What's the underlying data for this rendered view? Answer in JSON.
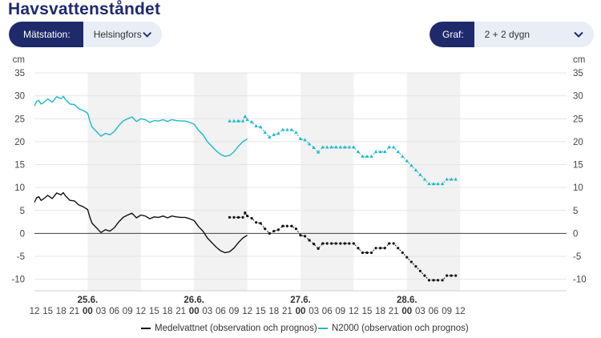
{
  "page": {
    "title": "Havsvattenståndet"
  },
  "station_selector": {
    "label": "Mätstation:",
    "value": "Helsingfors"
  },
  "graph_selector": {
    "label": "Graf:",
    "value": "2 + 2 dygn"
  },
  "colors": {
    "black_series": "#111111",
    "cyan_series": "#1fb8c8",
    "night_band": "#f2f2f2",
    "grid": "#e4e4e4",
    "zero": "#555555",
    "selector_dark": "#1f2a6b"
  },
  "chart_data": {
    "type": "line",
    "y_unit_left": "cm",
    "y_unit_right": "cm",
    "ylim": [
      -12.5,
      35
    ],
    "yticks": [
      35,
      30,
      25,
      20,
      15,
      10,
      5,
      0,
      -5,
      -10
    ],
    "xlim_hours": [
      12,
      132
    ],
    "x_tick_labels": [
      "12",
      "15",
      "18",
      "21",
      "00",
      "03",
      "06",
      "09",
      "12",
      "15",
      "18",
      "21",
      "00",
      "03",
      "06",
      "09",
      "12",
      "15",
      "18",
      "21",
      "00",
      "03",
      "06",
      "09",
      "12",
      "15",
      "18",
      "21",
      "00",
      "03",
      "06",
      "09",
      "12"
    ],
    "date_labels": [
      "25.6.",
      "26.6.",
      "27.6.",
      "28.6."
    ],
    "night_bands": [
      [
        24,
        36
      ],
      [
        48,
        60
      ],
      [
        72,
        84
      ],
      [
        96,
        108
      ]
    ],
    "grid": true,
    "legend_position": "bottom",
    "series": [
      {
        "name": "Medelvattnet (observation och prognos)",
        "color": "#111111",
        "observation": [
          [
            12,
            6.8
          ],
          [
            12.5,
            7.8
          ],
          [
            13,
            8
          ],
          [
            13.5,
            7.2
          ],
          [
            14,
            7.5
          ],
          [
            15,
            8.3
          ],
          [
            16,
            7.6
          ],
          [
            17,
            8.8
          ],
          [
            18,
            8.4
          ],
          [
            18.5,
            8.9
          ],
          [
            19,
            8.2
          ],
          [
            20,
            7.2
          ],
          [
            21,
            7.1
          ],
          [
            22,
            6.2
          ],
          [
            23,
            5.8
          ],
          [
            24,
            5.2
          ],
          [
            24.5,
            3.5
          ],
          [
            25,
            2.2
          ],
          [
            26,
            1.2
          ],
          [
            27,
            0.2
          ],
          [
            28,
            0.8
          ],
          [
            29,
            0.5
          ],
          [
            30,
            1.2
          ],
          [
            31,
            2.5
          ],
          [
            32,
            3.5
          ],
          [
            33,
            4
          ],
          [
            34,
            4.4
          ],
          [
            35,
            3.4
          ],
          [
            36,
            4
          ],
          [
            37,
            3.8
          ],
          [
            38,
            3.2
          ],
          [
            39,
            3.6
          ],
          [
            40,
            3.5
          ],
          [
            41,
            3.8
          ],
          [
            42,
            3.4
          ],
          [
            43,
            3.8
          ],
          [
            44,
            3.6
          ],
          [
            45,
            3.5
          ],
          [
            46,
            3.5
          ],
          [
            47,
            3.2
          ],
          [
            48,
            2.8
          ],
          [
            49,
            1.5
          ],
          [
            50,
            0.5
          ],
          [
            51,
            -1
          ],
          [
            52,
            -2
          ],
          [
            53,
            -3
          ],
          [
            54,
            -3.8
          ],
          [
            55,
            -4.2
          ],
          [
            56,
            -4
          ],
          [
            57,
            -3.2
          ],
          [
            58,
            -2
          ],
          [
            59,
            -1
          ],
          [
            60,
            -0.4
          ]
        ],
        "forecast": [
          [
            56,
            3.5
          ],
          [
            57,
            3.5
          ],
          [
            58,
            3.5
          ],
          [
            59,
            3.5
          ],
          [
            59.5,
            4.5
          ],
          [
            60,
            3.8
          ],
          [
            61,
            3.3
          ],
          [
            62,
            2.4
          ],
          [
            63,
            2.2
          ],
          [
            64,
            1
          ],
          [
            65,
            0
          ],
          [
            66,
            0.5
          ],
          [
            67,
            0.8
          ],
          [
            68,
            1.6
          ],
          [
            69,
            1.6
          ],
          [
            70,
            1.6
          ],
          [
            71,
            1
          ],
          [
            72,
            -0.4
          ],
          [
            73,
            -0.6
          ],
          [
            74,
            -1.5
          ],
          [
            75,
            -2.3
          ],
          [
            76,
            -3.3
          ],
          [
            77,
            -2.2
          ],
          [
            78,
            -2.2
          ],
          [
            79,
            -2.2
          ],
          [
            80,
            -2.2
          ],
          [
            81,
            -2.2
          ],
          [
            82,
            -2.2
          ],
          [
            83,
            -2.2
          ],
          [
            84,
            -2.2
          ],
          [
            85,
            -3.2
          ],
          [
            86,
            -4.2
          ],
          [
            87,
            -4.2
          ],
          [
            88,
            -4.2
          ],
          [
            89,
            -3.2
          ],
          [
            90,
            -3.2
          ],
          [
            91,
            -3.2
          ],
          [
            92,
            -2.2
          ],
          [
            93,
            -2.2
          ],
          [
            94,
            -3.2
          ],
          [
            95,
            -4.2
          ],
          [
            96,
            -5.2
          ],
          [
            97,
            -6.2
          ],
          [
            98,
            -7.2
          ],
          [
            99,
            -8.2
          ],
          [
            100,
            -9.2
          ],
          [
            101,
            -10.2
          ],
          [
            102,
            -10.2
          ],
          [
            103,
            -10.2
          ],
          [
            104,
            -10.2
          ],
          [
            105,
            -9.2
          ],
          [
            106,
            -9.2
          ],
          [
            107,
            -9.2
          ]
        ]
      },
      {
        "name": "N2000 (observation och prognos)",
        "color": "#1fb8c8",
        "observation": [
          [
            12,
            27.8
          ],
          [
            12.5,
            28.8
          ],
          [
            13,
            29
          ],
          [
            13.5,
            28.2
          ],
          [
            14,
            28.5
          ],
          [
            15,
            29.3
          ],
          [
            16,
            28.6
          ],
          [
            17,
            29.8
          ],
          [
            18,
            29.4
          ],
          [
            18.5,
            29.9
          ],
          [
            19,
            29.2
          ],
          [
            20,
            28.2
          ],
          [
            21,
            28.1
          ],
          [
            22,
            27.2
          ],
          [
            23,
            26.8
          ],
          [
            24,
            26.2
          ],
          [
            24.5,
            24.5
          ],
          [
            25,
            23.2
          ],
          [
            26,
            22.2
          ],
          [
            27,
            21.2
          ],
          [
            28,
            21.8
          ],
          [
            29,
            21.5
          ],
          [
            30,
            22.2
          ],
          [
            31,
            23.5
          ],
          [
            32,
            24.5
          ],
          [
            33,
            25
          ],
          [
            34,
            25.4
          ],
          [
            35,
            24.4
          ],
          [
            36,
            25
          ],
          [
            37,
            24.8
          ],
          [
            38,
            24.2
          ],
          [
            39,
            24.6
          ],
          [
            40,
            24.5
          ],
          [
            41,
            24.8
          ],
          [
            42,
            24.4
          ],
          [
            43,
            24.8
          ],
          [
            44,
            24.6
          ],
          [
            45,
            24.5
          ],
          [
            46,
            24.5
          ],
          [
            47,
            24.2
          ],
          [
            48,
            23.8
          ],
          [
            49,
            22.5
          ],
          [
            50,
            21.5
          ],
          [
            51,
            20
          ],
          [
            52,
            19
          ],
          [
            53,
            18
          ],
          [
            54,
            17.2
          ],
          [
            55,
            16.8
          ],
          [
            56,
            17
          ],
          [
            57,
            17.8
          ],
          [
            58,
            19
          ],
          [
            59,
            20
          ],
          [
            60,
            20.6
          ]
        ],
        "forecast": [
          [
            56,
            24.5
          ],
          [
            57,
            24.5
          ],
          [
            58,
            24.5
          ],
          [
            59,
            24.5
          ],
          [
            59.5,
            25.5
          ],
          [
            60,
            24.8
          ],
          [
            61,
            24.3
          ],
          [
            62,
            23.4
          ],
          [
            63,
            23.2
          ],
          [
            64,
            22
          ],
          [
            65,
            21
          ],
          [
            66,
            21.5
          ],
          [
            67,
            21.8
          ],
          [
            68,
            22.6
          ],
          [
            69,
            22.6
          ],
          [
            70,
            22.6
          ],
          [
            71,
            22
          ],
          [
            72,
            20.6
          ],
          [
            73,
            20.4
          ],
          [
            74,
            19.5
          ],
          [
            75,
            18.7
          ],
          [
            76,
            17.7
          ],
          [
            77,
            18.8
          ],
          [
            78,
            18.8
          ],
          [
            79,
            18.8
          ],
          [
            80,
            18.8
          ],
          [
            81,
            18.8
          ],
          [
            82,
            18.8
          ],
          [
            83,
            18.8
          ],
          [
            84,
            18.8
          ],
          [
            85,
            17.8
          ],
          [
            86,
            16.8
          ],
          [
            87,
            16.8
          ],
          [
            88,
            16.8
          ],
          [
            89,
            17.8
          ],
          [
            90,
            17.8
          ],
          [
            91,
            17.8
          ],
          [
            92,
            18.8
          ],
          [
            93,
            18.8
          ],
          [
            94,
            17.8
          ],
          [
            95,
            16.8
          ],
          [
            96,
            15.8
          ],
          [
            97,
            14.8
          ],
          [
            98,
            13.8
          ],
          [
            99,
            12.8
          ],
          [
            100,
            11.8
          ],
          [
            101,
            10.8
          ],
          [
            102,
            10.8
          ],
          [
            103,
            10.8
          ],
          [
            104,
            10.8
          ],
          [
            105,
            11.8
          ],
          [
            106,
            11.8
          ],
          [
            107,
            11.8
          ]
        ]
      }
    ]
  }
}
